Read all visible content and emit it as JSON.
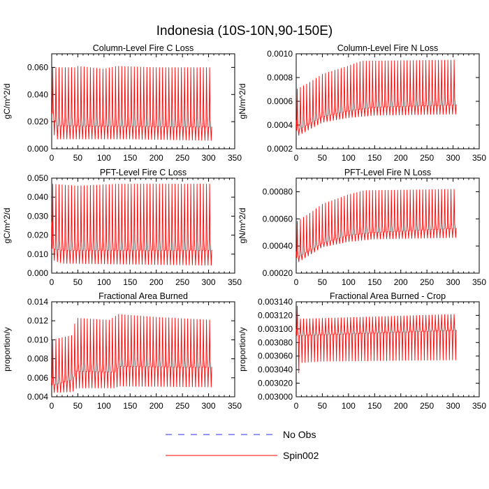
{
  "figure_title": "Indonesia (10S-10N,90-150E)",
  "legend": {
    "items": [
      {
        "label": "No Obs",
        "color": "#2b2bff",
        "dash": true
      },
      {
        "label": "Spin002",
        "color": "#ff0000",
        "dash": false
      }
    ]
  },
  "colors": {
    "series": "#ff0000",
    "axes": "#000000"
  },
  "chart_data": [
    {
      "type": "line",
      "title": "Column-Level Fire C Loss",
      "xlabel": "",
      "ylabel": "gC/m^2/d",
      "xlim": [
        0,
        350
      ],
      "ylim": [
        0.0,
        0.07
      ],
      "xticks": [
        0,
        50,
        100,
        150,
        200,
        250,
        300,
        350
      ],
      "xtick_labels": [
        "0",
        "50",
        "100",
        "150",
        "200",
        "250",
        "300",
        "350"
      ],
      "yticks": [
        0.0,
        0.02,
        0.04,
        0.06
      ],
      "ytick_labels": [
        "0.000",
        "0.020",
        "0.040",
        "0.060"
      ],
      "series": [
        {
          "name": "Spin002",
          "x_start": 0,
          "x_end": 307,
          "period": 6,
          "peak": [
            [
              0,
              0.06
            ],
            [
              45,
              0.06
            ],
            [
              50,
              0.061
            ],
            [
              100,
              0.059
            ],
            [
              125,
              0.061
            ],
            [
              200,
              0.06
            ],
            [
              307,
              0.06
            ]
          ],
          "trough": [
            [
              0,
              0.013
            ],
            [
              10,
              0.007
            ],
            [
              50,
              0.007
            ],
            [
              150,
              0.007
            ],
            [
              307,
              0.006
            ]
          ],
          "mid": [
            [
              0,
              0.027
            ],
            [
              10,
              0.017
            ],
            [
              307,
              0.016
            ]
          ],
          "start": 0.027
        }
      ]
    },
    {
      "type": "line",
      "title": "Column-Level Fire N Loss",
      "xlabel": "",
      "ylabel": "gN/m^2/d",
      "xlim": [
        0,
        350
      ],
      "ylim": [
        0.0002,
        0.001
      ],
      "xticks": [
        0,
        50,
        100,
        150,
        200,
        250,
        300,
        350
      ],
      "xtick_labels": [
        "0",
        "50",
        "100",
        "150",
        "200",
        "250",
        "300",
        "350"
      ],
      "yticks": [
        0.0002,
        0.0004,
        0.0006,
        0.0008,
        0.001
      ],
      "ytick_labels": [
        "0.0002",
        "0.0004",
        "0.0006",
        "0.0008",
        "0.0010"
      ],
      "series": [
        {
          "name": "Spin002",
          "x_start": 0,
          "x_end": 307,
          "period": 6,
          "peak": [
            [
              0,
              0.0007
            ],
            [
              25,
              0.00076
            ],
            [
              50,
              0.00083
            ],
            [
              100,
              0.0009
            ],
            [
              125,
              0.00094
            ],
            [
              307,
              0.00095
            ]
          ],
          "trough": [
            [
              0,
              0.0003
            ],
            [
              25,
              0.00036
            ],
            [
              50,
              0.00042
            ],
            [
              100,
              0.00046
            ],
            [
              150,
              0.00048
            ],
            [
              307,
              0.00049
            ]
          ],
          "mid": [
            [
              0,
              0.00035
            ],
            [
              50,
              0.00047
            ],
            [
              100,
              0.00052
            ],
            [
              150,
              0.00055
            ],
            [
              307,
              0.00057
            ]
          ],
          "start": 0.00044
        }
      ]
    },
    {
      "type": "line",
      "title": "PFT-Level Fire C Loss",
      "xlabel": "",
      "ylabel": "gC/m^2/d",
      "xlim": [
        0,
        350
      ],
      "ylim": [
        0.0,
        0.05
      ],
      "xticks": [
        0,
        50,
        100,
        150,
        200,
        250,
        300,
        350
      ],
      "xtick_labels": [
        "0",
        "50",
        "100",
        "150",
        "200",
        "250",
        "300",
        "350"
      ],
      "yticks": [
        0.0,
        0.01,
        0.02,
        0.03,
        0.04,
        0.05
      ],
      "ytick_labels": [
        "0.000",
        "0.010",
        "0.020",
        "0.030",
        "0.040",
        "0.050"
      ],
      "series": [
        {
          "name": "Spin002",
          "x_start": 0,
          "x_end": 307,
          "period": 6,
          "peak": [
            [
              0,
              0.047
            ],
            [
              50,
              0.046
            ],
            [
              125,
              0.047
            ],
            [
              307,
              0.047
            ]
          ],
          "trough": [
            [
              0,
              0.007
            ],
            [
              20,
              0.005
            ],
            [
              307,
              0.004
            ]
          ],
          "mid": [
            [
              0,
              0.013
            ],
            [
              20,
              0.012
            ],
            [
              307,
              0.012
            ]
          ],
          "start": 0.027
        }
      ]
    },
    {
      "type": "line",
      "title": "PFT-Level Fire N Loss",
      "xlabel": "",
      "ylabel": "gN/m^2/d",
      "xlim": [
        0,
        350
      ],
      "ylim": [
        0.0002,
        0.0009
      ],
      "xticks": [
        0,
        50,
        100,
        150,
        200,
        250,
        300,
        350
      ],
      "xtick_labels": [
        "0",
        "50",
        "100",
        "150",
        "200",
        "250",
        "300",
        "350"
      ],
      "yticks": [
        0.0002,
        0.0004,
        0.0006,
        0.0008
      ],
      "ytick_labels": [
        "0.00020",
        "0.00040",
        "0.00060",
        "0.00080"
      ],
      "series": [
        {
          "name": "Spin002",
          "x_start": 0,
          "x_end": 307,
          "period": 6,
          "peak": [
            [
              0,
              0.00058
            ],
            [
              25,
              0.00064
            ],
            [
              50,
              0.00071
            ],
            [
              100,
              0.00078
            ],
            [
              130,
              0.00081
            ],
            [
              307,
              0.00082
            ]
          ],
          "trough": [
            [
              0,
              0.00027
            ],
            [
              25,
              0.00033
            ],
            [
              50,
              0.00039
            ],
            [
              100,
              0.00043
            ],
            [
              150,
              0.00045
            ],
            [
              307,
              0.00046
            ]
          ],
          "mid": [
            [
              0,
              0.00031
            ],
            [
              50,
              0.00042
            ],
            [
              100,
              0.00048
            ],
            [
              150,
              0.0005
            ],
            [
              307,
              0.00053
            ]
          ],
          "start": 0.00036
        }
      ]
    },
    {
      "type": "line",
      "title": "Fractional Area Burned",
      "xlabel": "",
      "ylabel": "proportion/y",
      "xlim": [
        0,
        350
      ],
      "ylim": [
        0.004,
        0.014
      ],
      "xticks": [
        0,
        50,
        100,
        150,
        200,
        250,
        300,
        350
      ],
      "xtick_labels": [
        "0",
        "50",
        "100",
        "150",
        "200",
        "250",
        "300",
        "350"
      ],
      "yticks": [
        0.004,
        0.006,
        0.008,
        0.01,
        0.012,
        0.014
      ],
      "ytick_labels": [
        "0.004",
        "0.006",
        "0.008",
        "0.010",
        "0.012",
        "0.014"
      ],
      "series": [
        {
          "name": "Spin002",
          "x_start": 0,
          "x_end": 307,
          "period": 6,
          "peak": [
            [
              0,
              0.01
            ],
            [
              40,
              0.0105
            ],
            [
              46,
              0.0123
            ],
            [
              110,
              0.0121
            ],
            [
              128,
              0.0127
            ],
            [
              200,
              0.0124
            ],
            [
              307,
              0.0121
            ]
          ],
          "trough": [
            [
              0,
              0.0044
            ],
            [
              40,
              0.0045
            ],
            [
              48,
              0.0049
            ],
            [
              120,
              0.0049
            ],
            [
              130,
              0.0051
            ],
            [
              307,
              0.005
            ]
          ],
          "mid": [
            [
              0,
              0.0052
            ],
            [
              40,
              0.0058
            ],
            [
              48,
              0.0067
            ],
            [
              120,
              0.0066
            ],
            [
              130,
              0.0072
            ],
            [
              307,
              0.0071
            ]
          ],
          "start": 0.006
        }
      ]
    },
    {
      "type": "line",
      "title": "Fractional Area Burned - Crop",
      "xlabel": "",
      "ylabel": "proportion/y",
      "xlim": [
        0,
        350
      ],
      "ylim": [
        0.003,
        0.00314
      ],
      "xticks": [
        0,
        50,
        100,
        150,
        200,
        250,
        300,
        350
      ],
      "xtick_labels": [
        "0",
        "50",
        "100",
        "150",
        "200",
        "250",
        "300",
        "350"
      ],
      "yticks": [
        0.003,
        0.00302,
        0.00304,
        0.00306,
        0.00308,
        0.0031,
        0.00312,
        0.00314
      ],
      "ytick_labels": [
        "0.003000",
        "0.003020",
        "0.003040",
        "0.003060",
        "0.003080",
        "0.003100",
        "0.003120",
        "0.003140"
      ],
      "series": [
        {
          "name": "Spin002",
          "x_start": 0,
          "x_end": 307,
          "period": 6,
          "peak": [
            [
              0,
              0.00314
            ],
            [
              8,
              0.003115
            ],
            [
              307,
              0.003122
            ]
          ],
          "trough": [
            [
              0,
              0.00302
            ],
            [
              10,
              0.00305
            ],
            [
              50,
              0.003052
            ],
            [
              307,
              0.003054
            ]
          ],
          "mid": [
            [
              0,
              0.00309
            ],
            [
              307,
              0.003098
            ]
          ],
          "start": 0.0031
        }
      ]
    }
  ]
}
